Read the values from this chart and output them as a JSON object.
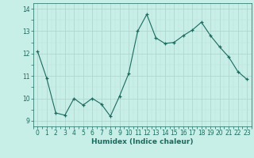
{
  "x": [
    0,
    1,
    2,
    3,
    4,
    5,
    6,
    7,
    8,
    9,
    10,
    11,
    12,
    13,
    14,
    15,
    16,
    17,
    18,
    19,
    20,
    21,
    22,
    23
  ],
  "y": [
    12.1,
    10.9,
    9.35,
    9.25,
    10.0,
    9.7,
    10.0,
    9.75,
    9.2,
    10.1,
    11.1,
    13.0,
    13.75,
    12.7,
    12.45,
    12.5,
    12.8,
    13.05,
    13.4,
    12.8,
    12.3,
    11.85,
    11.2,
    10.85
  ],
  "line_color": "#1a6b5e",
  "bg_color": "#c8eee8",
  "grid_color_major": "#aad4cc",
  "grid_color_minor": "#c0e4de",
  "xlabel": "Humidex (Indice chaleur)",
  "ylim": [
    8.75,
    14.25
  ],
  "xlim": [
    -0.5,
    23.5
  ],
  "yticks": [
    9,
    10,
    11,
    12,
    13,
    14
  ],
  "xticks": [
    0,
    1,
    2,
    3,
    4,
    5,
    6,
    7,
    8,
    9,
    10,
    11,
    12,
    13,
    14,
    15,
    16,
    17,
    18,
    19,
    20,
    21,
    22,
    23
  ],
  "tick_color": "#1a6b5e",
  "label_fontsize": 6.5,
  "tick_fontsize": 5.5
}
